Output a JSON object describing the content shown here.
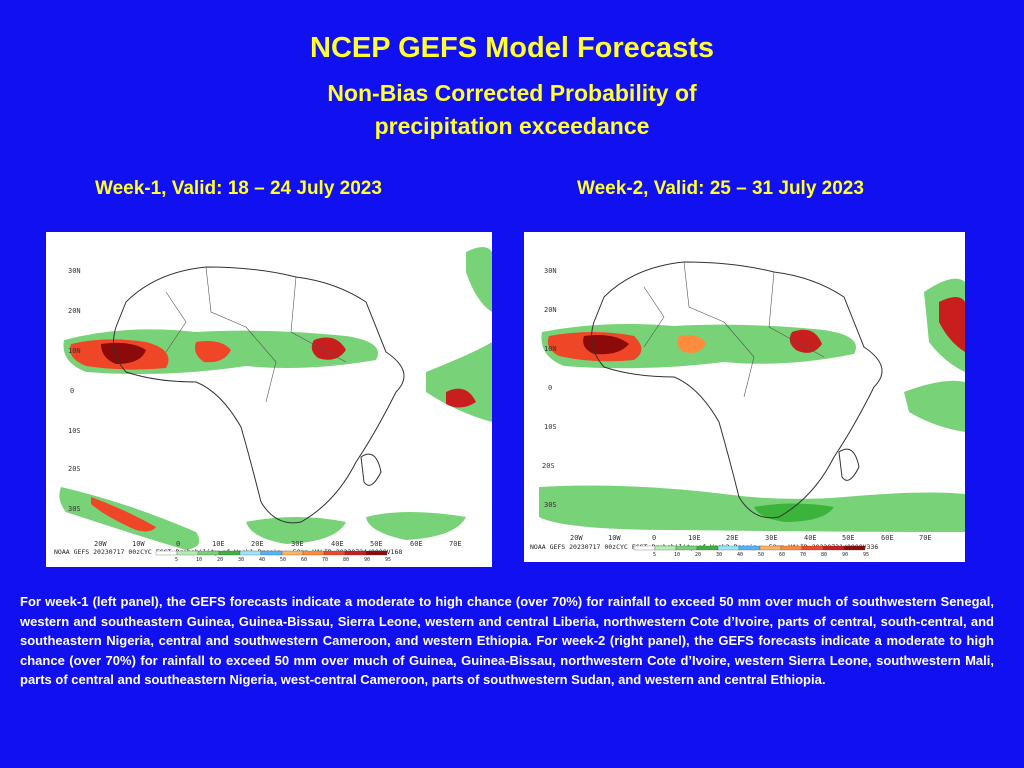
{
  "header": {
    "title": "NCEP GEFS Model Forecasts",
    "subtitle": "Non-Bias Corrected Probability of precipitation exceedance"
  },
  "panels": [
    {
      "heading": "Week-1, Valid: 18 – 24 July 2023",
      "footer": "NOAA GEFS 20230717 00zCYC FCST Probability of Week1 Precip > 50mm  VALID 20230724/0000V168",
      "lat_labels": [
        "30N",
        "20N",
        "10N",
        "0",
        "10S",
        "20S",
        "30S"
      ],
      "lon_labels": [
        "20W",
        "10W",
        "0",
        "10E",
        "20E",
        "30E",
        "40E",
        "50E",
        "60E",
        "70E"
      ]
    },
    {
      "heading": "Week-2, Valid: 25 – 31 July 2023",
      "footer": "NOAA GEFS 20230717 00zCYC FCST Probability of Week2 Precip > 50mm  VALID 20230731/0000V336",
      "lat_labels": [
        "30N",
        "20N",
        "10N",
        "0",
        "10S",
        "20S",
        "30S"
      ],
      "lon_labels": [
        "20W",
        "10W",
        "0",
        "10E",
        "20E",
        "30E",
        "40E",
        "50E",
        "60E",
        "70E"
      ]
    }
  ],
  "colorbar": {
    "labels": [
      "5",
      "10",
      "20",
      "30",
      "40",
      "50",
      "60",
      "70",
      "80",
      "90",
      "95"
    ],
    "colors": [
      "#ffffff",
      "#b4f0b4",
      "#78d278",
      "#3cb43c",
      "#9be6ff",
      "#50b4ff",
      "#ffb464",
      "#ff8c3c",
      "#f04628",
      "#c81e1e",
      "#8c0a0a"
    ]
  },
  "description": "For week-1 (left panel), the GEFS forecasts indicate a moderate to high chance (over 70%) for rainfall to exceed 50 mm over much of southwestern Senegal, western and southeastern Guinea, Guinea-Bissau, Sierra Leone, western and central Liberia, northwestern Cote d’Ivoire, parts of central, south-central, and southeastern Nigeria, central and southwestern Cameroon, and western Ethiopia. For week-2 (right panel), the GEFS forecasts indicate a moderate to high chance (over 70%) for rainfall to exceed 50 mm over much of Guinea, Guinea-Bissau, northwestern Cote d’Ivoire, western Sierra Leone, southwestern Mali, parts of central and southeastern Nigeria, west-central Cameroon, parts of southwestern Sudan, and western and central Ethiopia."
}
